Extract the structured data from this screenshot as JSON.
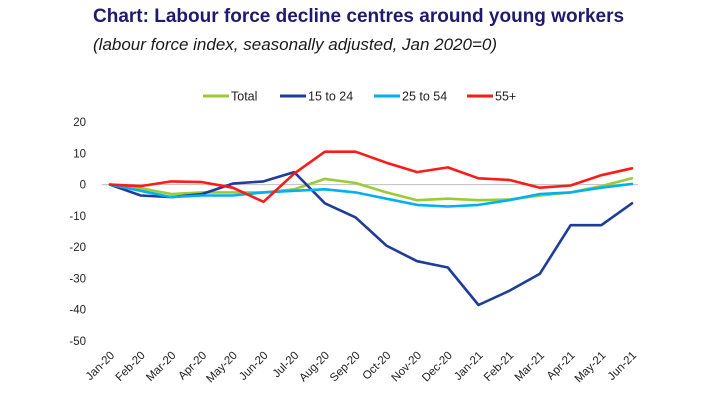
{
  "title": "Chart: Labour force decline centres around young workers",
  "subtitle": "(labour force index, seasonally adjusted, Jan 2020=0)",
  "chart_data": {
    "type": "line",
    "title": "Chart: Labour force decline centres around young workers",
    "subtitle": "(labour force index, seasonally adjusted, Jan 2020=0)",
    "xlabel": "",
    "ylabel": "",
    "ylim": [
      -50,
      20
    ],
    "yticks": [
      20,
      10,
      0,
      -10,
      -20,
      -30,
      -40,
      -50
    ],
    "grid": false,
    "legend_position": "top",
    "categories": [
      "Jan-20",
      "Feb-20",
      "Mar-20",
      "Apr-20",
      "May-20",
      "Jun-20",
      "Jul-20",
      "Aug-20",
      "Sep-20",
      "Oct-20",
      "Nov-20",
      "Dec-20",
      "Jan-21",
      "Feb-21",
      "Mar-21",
      "Apr-21",
      "May-21",
      "Jun-21"
    ],
    "series": [
      {
        "name": "Total",
        "color": "#99cc33",
        "values": [
          0,
          -1.2,
          -3,
          -2.5,
          -2.5,
          -2.5,
          -1.5,
          1.8,
          0.5,
          -2.5,
          -5,
          -4.5,
          -5,
          -4.8,
          -3.5,
          -2.5,
          -0.5,
          2
        ]
      },
      {
        "name": "15 to 24",
        "color": "#1f3c99",
        "values": [
          0,
          -3.5,
          -4,
          -3,
          0.3,
          1,
          4,
          -6,
          -10.5,
          -19.5,
          -24.5,
          -26.5,
          -38.5,
          -34,
          -28.5,
          -13,
          -13,
          -6
        ]
      },
      {
        "name": "25 to 54",
        "color": "#00b0f0",
        "values": [
          0,
          -2,
          -4,
          -3.5,
          -3.5,
          -2.5,
          -2,
          -1.5,
          -2.5,
          -4.5,
          -6.5,
          -7,
          -6.5,
          -5,
          -3,
          -2.5,
          -1,
          0.2
        ]
      },
      {
        "name": "55+",
        "color": "#ff1a1a",
        "values": [
          0,
          -0.5,
          1,
          0.8,
          -1,
          -5.5,
          3.5,
          10.5,
          10.5,
          7,
          4,
          5.5,
          2,
          1.5,
          -1,
          -0.3,
          3,
          5.2
        ]
      }
    ]
  }
}
